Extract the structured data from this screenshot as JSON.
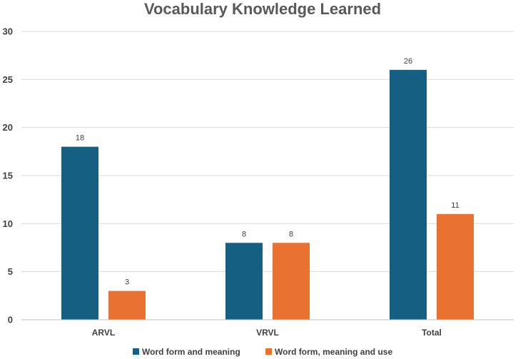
{
  "chart_data": {
    "type": "bar",
    "title": "Vocabulary Knowledge Learned",
    "categories": [
      "ARVL",
      "VRVL",
      "Total"
    ],
    "series": [
      {
        "name": "Word form and meaning",
        "values": [
          18,
          8,
          26
        ],
        "color": "#156082"
      },
      {
        "name": "Word form, meaning and use",
        "values": [
          3,
          8,
          11
        ],
        "color": "#E97132"
      }
    ],
    "ylim": [
      0,
      30
    ],
    "yticks": [
      0,
      5,
      10,
      15,
      20,
      25,
      30
    ],
    "grid": true,
    "legend_position": "bottom"
  }
}
